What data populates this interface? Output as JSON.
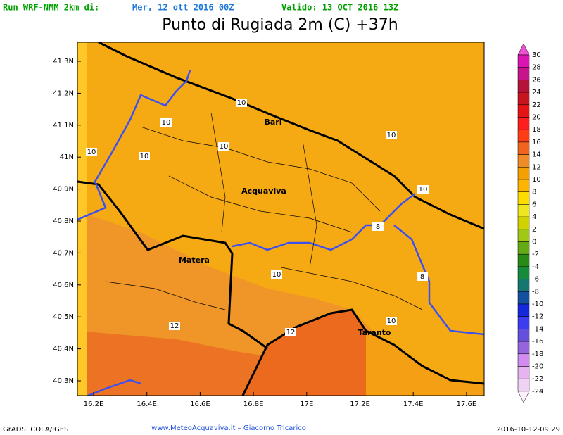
{
  "header": {
    "run": "Run WRF-NMM 2km di:",
    "run_date": "Mer, 12 ott 2016 00Z",
    "valid": "Valido: 13 OCT 2016 13Z",
    "title": "Punto di Rugiada 2m (C) +37h"
  },
  "map": {
    "lat_labels": [
      "41.3N",
      "41.2N",
      "41.1N",
      "41N",
      "40.9N",
      "40.8N",
      "40.7N",
      "40.6N",
      "40.5N",
      "40.4N",
      "40.3N"
    ],
    "lon_labels": [
      "16.2E",
      "16.4E",
      "16.6E",
      "16.8E",
      "17E",
      "17.2E",
      "17.4E",
      "17.6E"
    ],
    "cities": [
      "Bari",
      "Acquaviva",
      "Matera",
      "Taranto"
    ],
    "contour_labels": [
      10,
      10,
      10,
      10,
      10,
      10,
      10,
      8,
      8,
      10,
      12,
      12,
      10
    ]
  },
  "colorbar": {
    "levels": [
      30,
      28,
      26,
      24,
      22,
      20,
      18,
      16,
      14,
      12,
      10,
      8,
      6,
      4,
      2,
      0,
      -2,
      -4,
      -6,
      -8,
      -10,
      -12,
      -14,
      -16,
      -18,
      -20,
      -22,
      -24
    ],
    "colors": [
      "#f050d2",
      "#dc14b4",
      "#c8148c",
      "#b4143c",
      "#c8141e",
      "#e61414",
      "#ff1e1e",
      "#ff3c14",
      "#f0641e",
      "#f08c28",
      "#f5a000",
      "#ffb400",
      "#ffdc00",
      "#f0e61e",
      "#d2d200",
      "#a0c814",
      "#64aa14",
      "#288c14",
      "#148c3c",
      "#14786e",
      "#1450a0",
      "#1428dc",
      "#3c3cf0",
      "#6450dc",
      "#9664dc",
      "#d28cf0",
      "#e6b4f0",
      "#f0d2f5",
      "#fff0ff"
    ]
  },
  "footer": {
    "credit": "GrADS: COLA/IGES",
    "site": "www.MeteoAcquaviva.it  –  Giacomo Tricarico",
    "timestamp": "2016-10-12-09:29"
  }
}
